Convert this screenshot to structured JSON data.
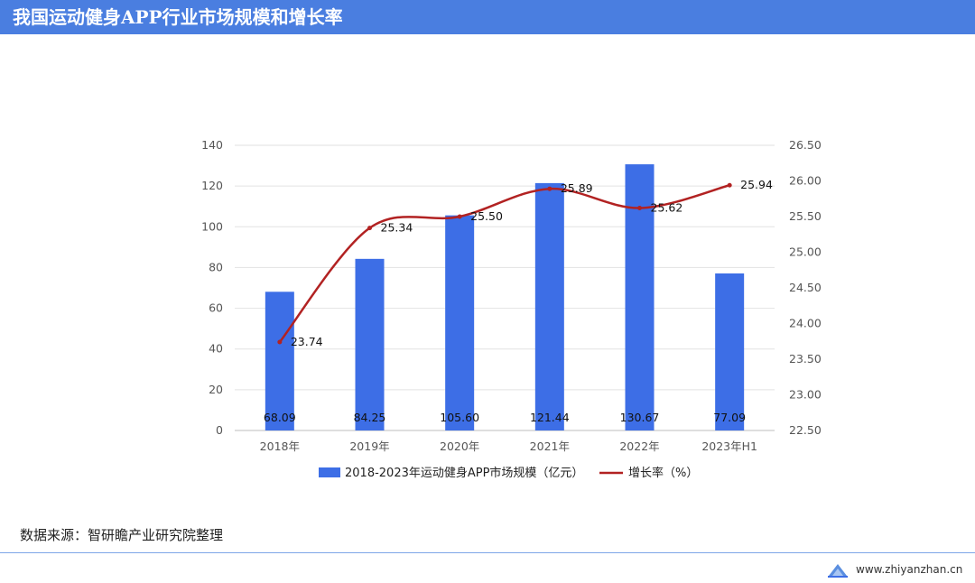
{
  "header": {
    "title": "我国运动健身APP行业市场规模和增长率"
  },
  "chart_data": {
    "type": "bar+line",
    "categories": [
      "2018年",
      "2019年",
      "2020年",
      "2021年",
      "2022年",
      "2023年H1"
    ],
    "series": [
      {
        "name": "2018-2023年运动健身APP市场规模（亿元）",
        "type": "bar",
        "axis": "left",
        "values": [
          68.09,
          84.25,
          105.6,
          121.44,
          130.67,
          77.09
        ],
        "labels": [
          "68.09",
          "84.25",
          "105.60",
          "121.44",
          "130.67",
          "77.09"
        ],
        "color": "#3d6ee6"
      },
      {
        "name": "增长率（%）",
        "type": "line",
        "axis": "right",
        "values": [
          23.74,
          25.34,
          25.5,
          25.89,
          25.62,
          25.94
        ],
        "labels": [
          "23.74",
          "25.34",
          "25.50",
          "25.89",
          "25.62",
          "25.94"
        ],
        "color": "#b22222"
      }
    ],
    "y_left": {
      "min": 0,
      "max": 140,
      "ticks": [
        "0",
        "20",
        "40",
        "60",
        "80",
        "100",
        "120",
        "140"
      ]
    },
    "y_right": {
      "min": 22.5,
      "max": 26.5,
      "ticks": [
        "22.50",
        "23.00",
        "23.50",
        "24.00",
        "24.50",
        "25.00",
        "25.50",
        "26.00",
        "26.50"
      ]
    },
    "grid": true,
    "legend_position": "bottom"
  },
  "footer": {
    "source": "数据来源：智研瞻产业研究院整理",
    "website": "www.zhiyanzhan.cn"
  }
}
